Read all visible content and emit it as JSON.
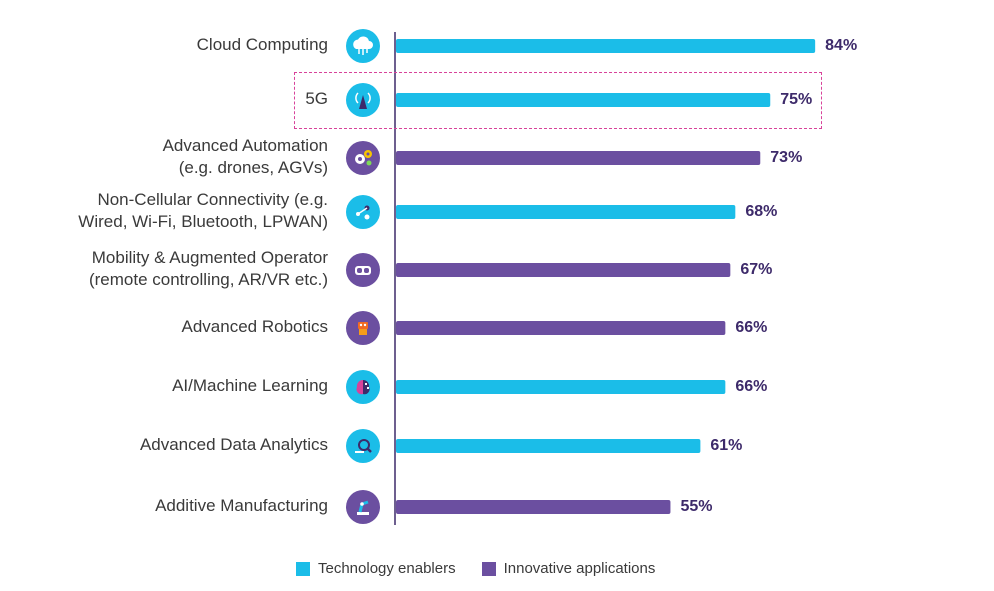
{
  "chart_data": {
    "type": "bar",
    "orientation": "horizontal",
    "categories": [
      [
        "Cloud Computing"
      ],
      [
        "5G"
      ],
      [
        "Advanced Automation",
        "(e.g. drones, AGVs)"
      ],
      [
        "Non-Cellular Connectivity (e.g.",
        "Wired, Wi-Fi, Bluetooth, LPWAN)"
      ],
      [
        "Mobility & Augmented Operator",
        "(remote controlling, AR/VR etc.)"
      ],
      [
        "Advanced Robotics"
      ],
      [
        "AI/Machine Learning"
      ],
      [
        "Advanced Data Analytics"
      ],
      [
        "Additive Manufacturing"
      ]
    ],
    "values": [
      84,
      75,
      73,
      68,
      67,
      66,
      66,
      61,
      55
    ],
    "value_labels": [
      "84%",
      "75%",
      "73%",
      "68%",
      "67%",
      "66%",
      "66%",
      "61%",
      "55%"
    ],
    "groups": [
      "enabler",
      "enabler",
      "application",
      "enabler",
      "application",
      "application",
      "enabler",
      "enabler",
      "application"
    ],
    "icons": [
      "cloud-icon",
      "antenna-icon",
      "gears-icon",
      "network-icon",
      "vr-headset-icon",
      "robot-icon",
      "brain-icon",
      "magnifier-data-icon",
      "robot-arm-icon"
    ],
    "highlighted_category_index": 1,
    "xlim": [
      0,
      100
    ],
    "legend": [
      {
        "name": "Technology enablers",
        "color": "#1bbde8"
      },
      {
        "name": "Innovative applications",
        "color": "#6b4fa0"
      }
    ],
    "legend_position": "bottom",
    "grid": false
  }
}
